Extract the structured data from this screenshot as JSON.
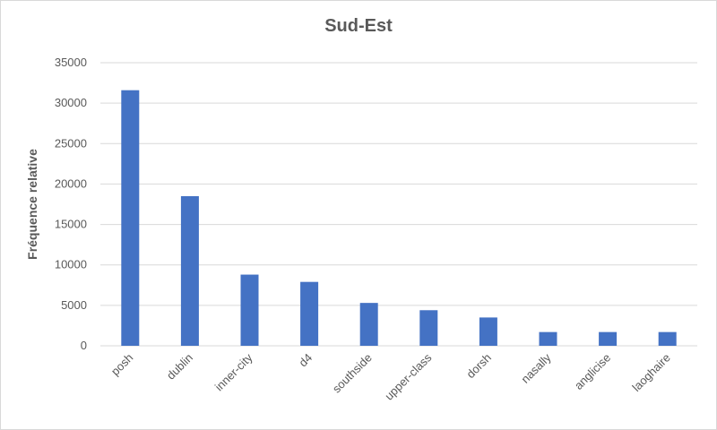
{
  "chart_data": {
    "type": "bar",
    "title": "Sud-Est",
    "xlabel": "",
    "ylabel": "Fréquence relative",
    "categories": [
      "posh",
      "dublin",
      "inner-city",
      "d4",
      "southside",
      "upper-class",
      "dorsh",
      "nasally",
      "anglicise",
      "laoghaire"
    ],
    "values": [
      31600,
      18500,
      8800,
      7900,
      5300,
      4400,
      3500,
      1700,
      1700,
      1700
    ],
    "ylim": [
      0,
      35000
    ],
    "yticks": [
      0,
      5000,
      10000,
      15000,
      20000,
      25000,
      30000,
      35000
    ],
    "grid": true,
    "legend": "none",
    "bar_color": "#4472c4",
    "grid_color": "#d9d9d9"
  }
}
